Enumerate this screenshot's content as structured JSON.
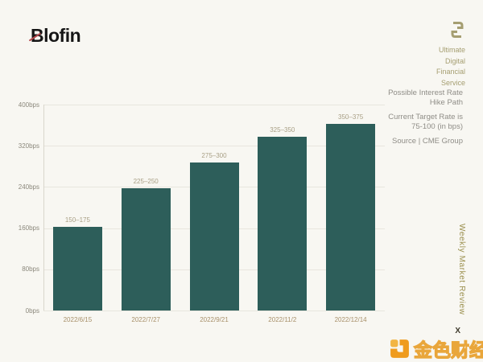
{
  "page": {
    "background": "#f8f7f2",
    "accent_teal": "#2d5e5a"
  },
  "brand": {
    "logo_text": "Blofin",
    "logo_slash_color": "#b5494d",
    "tagline_lines": [
      "Ultimate",
      "Digital",
      "Financial",
      "Service"
    ],
    "tagline_color": "#a59e71"
  },
  "info_panel": {
    "title_line1": "Possible Interest Rate",
    "title_line2": "Hike Path",
    "subtitle_line1": "Current Target Rate is",
    "subtitle_line2": "75-100 (in bps)",
    "source": "Source | CME Group"
  },
  "side_label": {
    "text": "Weekly Market Review",
    "color": "#9c9150"
  },
  "watermark": {
    "x_mark": "X",
    "text": "金色财经",
    "logo_color": "#ef9b1d"
  },
  "chart_data": {
    "type": "bar",
    "title": "Possible Interest Rate Hike Path",
    "categories": [
      "2022/6/15",
      "2022/7/27",
      "2022/9/21",
      "2022/11/2",
      "2022/12/14"
    ],
    "values": [
      162.5,
      237.5,
      287.5,
      337.5,
      362.5
    ],
    "bar_labels": [
      "150–175",
      "225–250",
      "275–300",
      "325–350",
      "350–375"
    ],
    "ylim": [
      0,
      400
    ],
    "ytick_values": [
      0,
      80,
      160,
      240,
      320,
      400
    ],
    "ytick_labels": [
      "0bps",
      "80bps",
      "160bps",
      "240bps",
      "320bps",
      "400bps"
    ],
    "grid": true,
    "legend": false,
    "bar_color": "#2d5e5a",
    "value_label_color": "#a89f85",
    "category_label_color": "#a8906a",
    "source": "CME Group"
  }
}
